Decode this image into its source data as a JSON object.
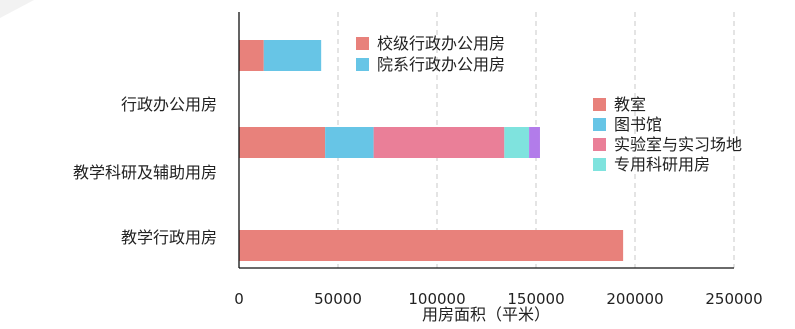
{
  "chart_data": {
    "type": "bar",
    "orientation": "horizontal",
    "stacked": true,
    "categories": [
      "行政办公用房",
      "教学科研及辅助用房",
      "教学行政用房"
    ],
    "xlabel": "用房面积（平米）",
    "ylabel": "",
    "xlim": [
      0,
      250000
    ],
    "xticks": [
      0,
      50000,
      100000,
      150000,
      200000,
      250000
    ],
    "xtick_labels": [
      "0",
      "50000",
      "100000",
      "150000",
      "200000",
      "250000"
    ],
    "grid": "vertical dashed",
    "bars": [
      {
        "category": "行政办公用房",
        "segments": [
          {
            "name": "校级行政办公用房",
            "value": 12500,
            "color": "#E8817B"
          },
          {
            "name": "院系行政办公用房",
            "value": 29000,
            "color": "#67C5E6"
          }
        ]
      },
      {
        "category": "教学科研及辅助用房",
        "segments": [
          {
            "name": "教室",
            "value": 43500,
            "color": "#E8817B"
          },
          {
            "name": "图书馆",
            "value": 24500,
            "color": "#67C5E6"
          },
          {
            "name": "实验室与实习场地",
            "value": 66000,
            "color": "#EA7F98"
          },
          {
            "name": "专用科研用房",
            "value": 12500,
            "color": "#7FE3DE"
          },
          {
            "name": "",
            "value": 5500,
            "color": "#B27CEA"
          }
        ]
      },
      {
        "category": "教学行政用房",
        "segments": [
          {
            "name": "",
            "value": 194000,
            "color": "#E8817B"
          }
        ]
      }
    ],
    "legends": [
      {
        "placement": "top-center",
        "entries": [
          {
            "label": "校级行政办公用房",
            "color": "#E8817B"
          },
          {
            "label": "院系行政办公用房",
            "color": "#67C5E6"
          }
        ]
      },
      {
        "placement": "right",
        "entries": [
          {
            "label": "教室",
            "color": "#E8817B"
          },
          {
            "label": "图书馆",
            "color": "#67C5E6"
          },
          {
            "label": "实验室与实习场地",
            "color": "#EA7F98"
          },
          {
            "label": "专用科研用房",
            "color": "#7FE3DE"
          }
        ]
      }
    ]
  }
}
